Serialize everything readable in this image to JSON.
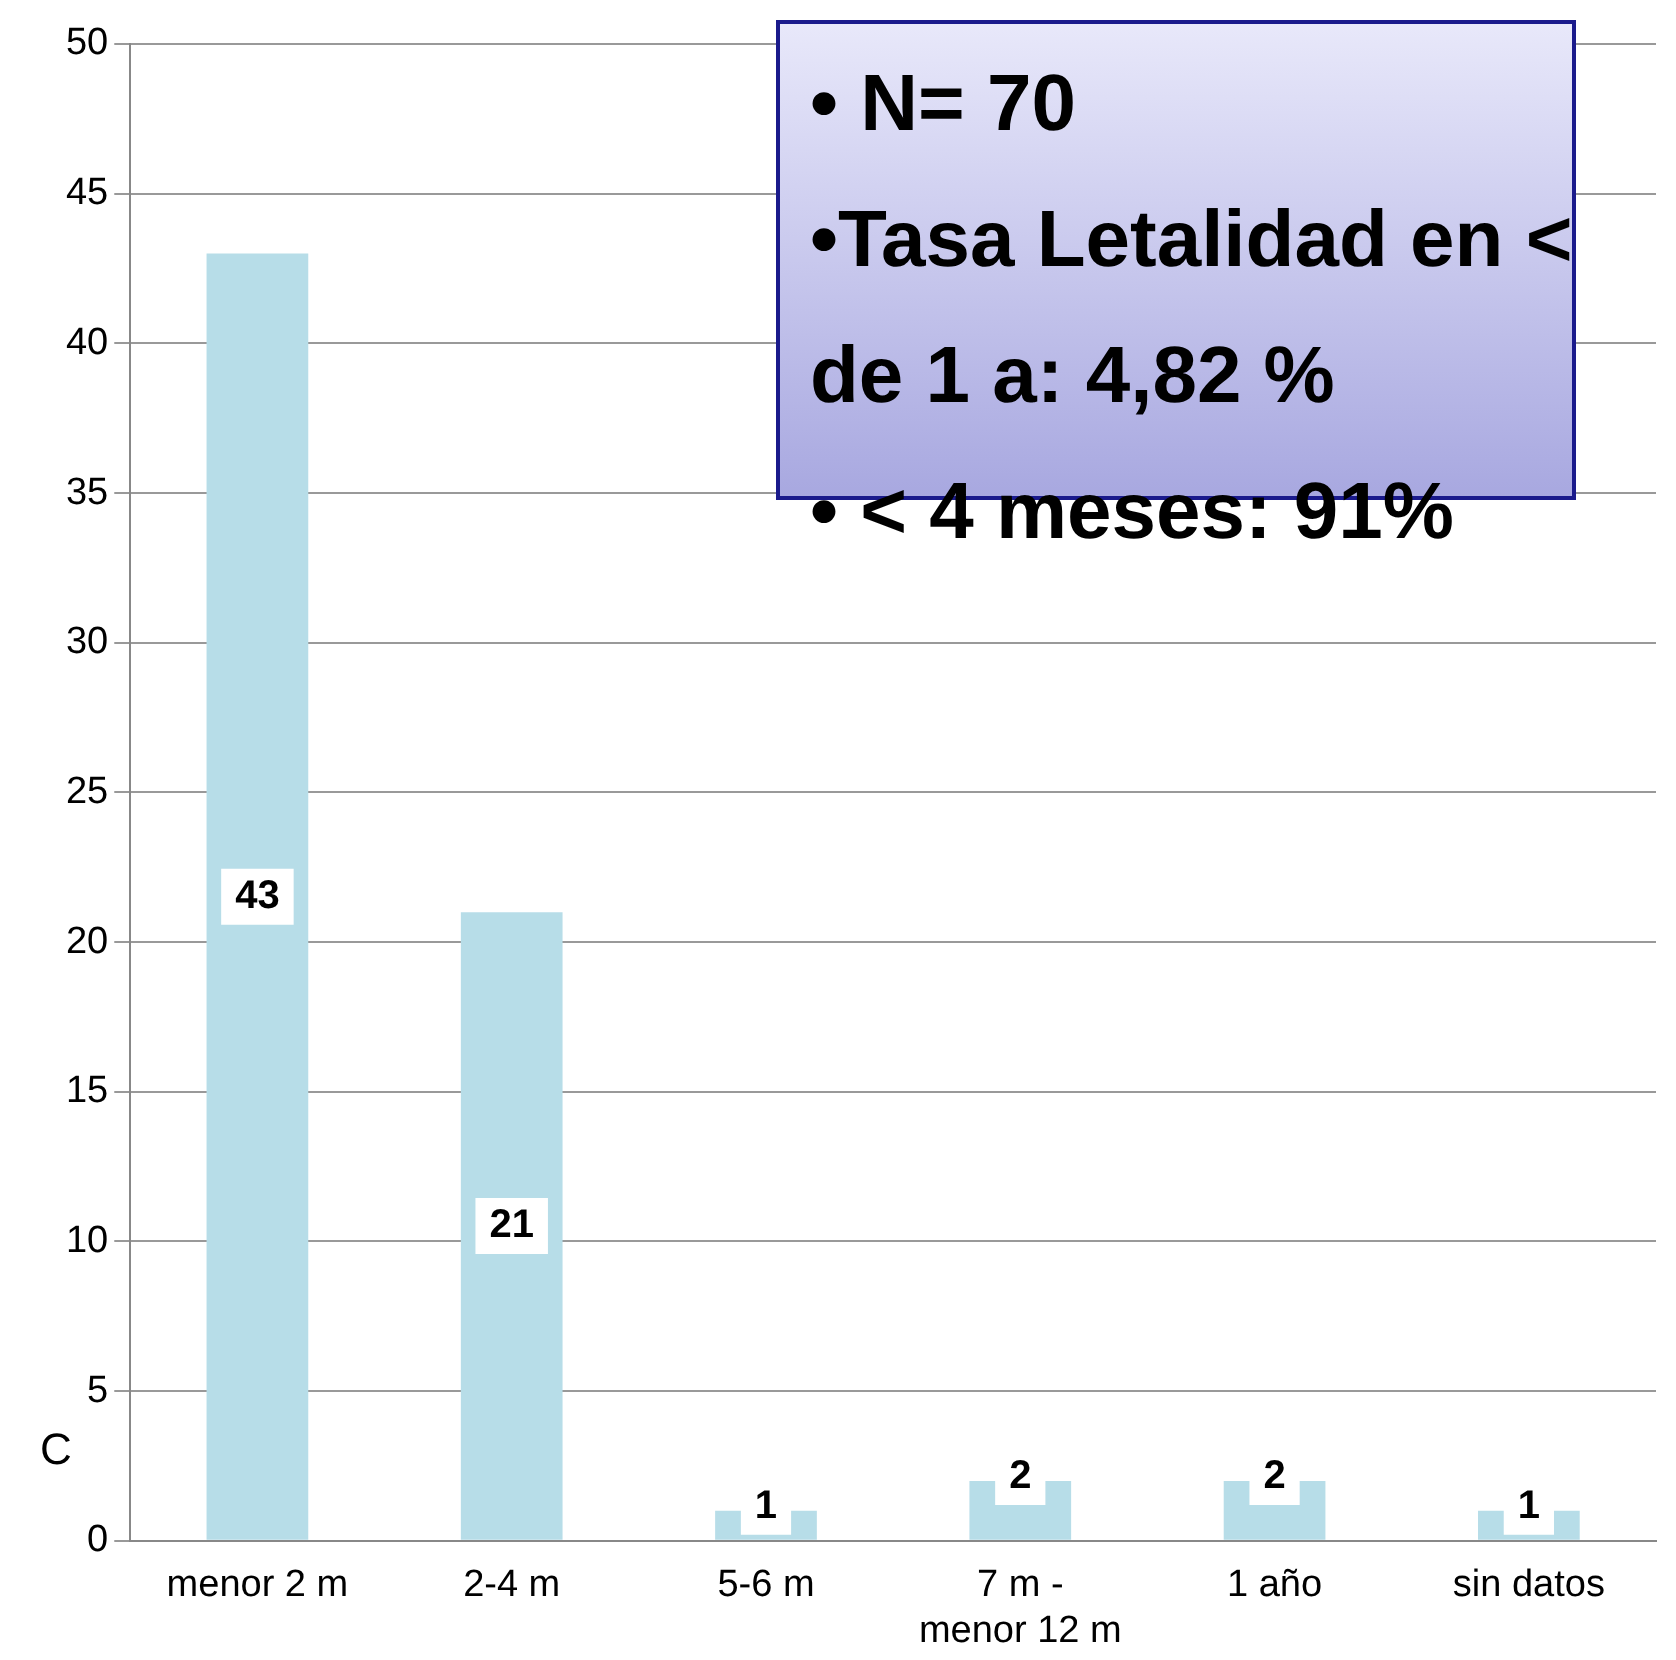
{
  "chart_data": {
    "type": "bar",
    "categories": [
      "menor 2 m",
      "2-4 m",
      "5-6 m",
      "7 m - menor 12 m",
      "1 año",
      "sin datos"
    ],
    "values": [
      43,
      21,
      1,
      2,
      2,
      1
    ],
    "color": "#b7dde8",
    "ylim": [
      0,
      50
    ],
    "yticks": [
      0,
      5,
      10,
      15,
      20,
      25,
      30,
      35,
      40,
      45,
      50
    ],
    "grid": "y",
    "data_labels": true,
    "legend": false,
    "annotations": [
      "• N= 70",
      "•Tasa Letalidad en < de 1 a:  4,82 %",
      "• < 4 meses:  91%",
      "C"
    ]
  }
}
